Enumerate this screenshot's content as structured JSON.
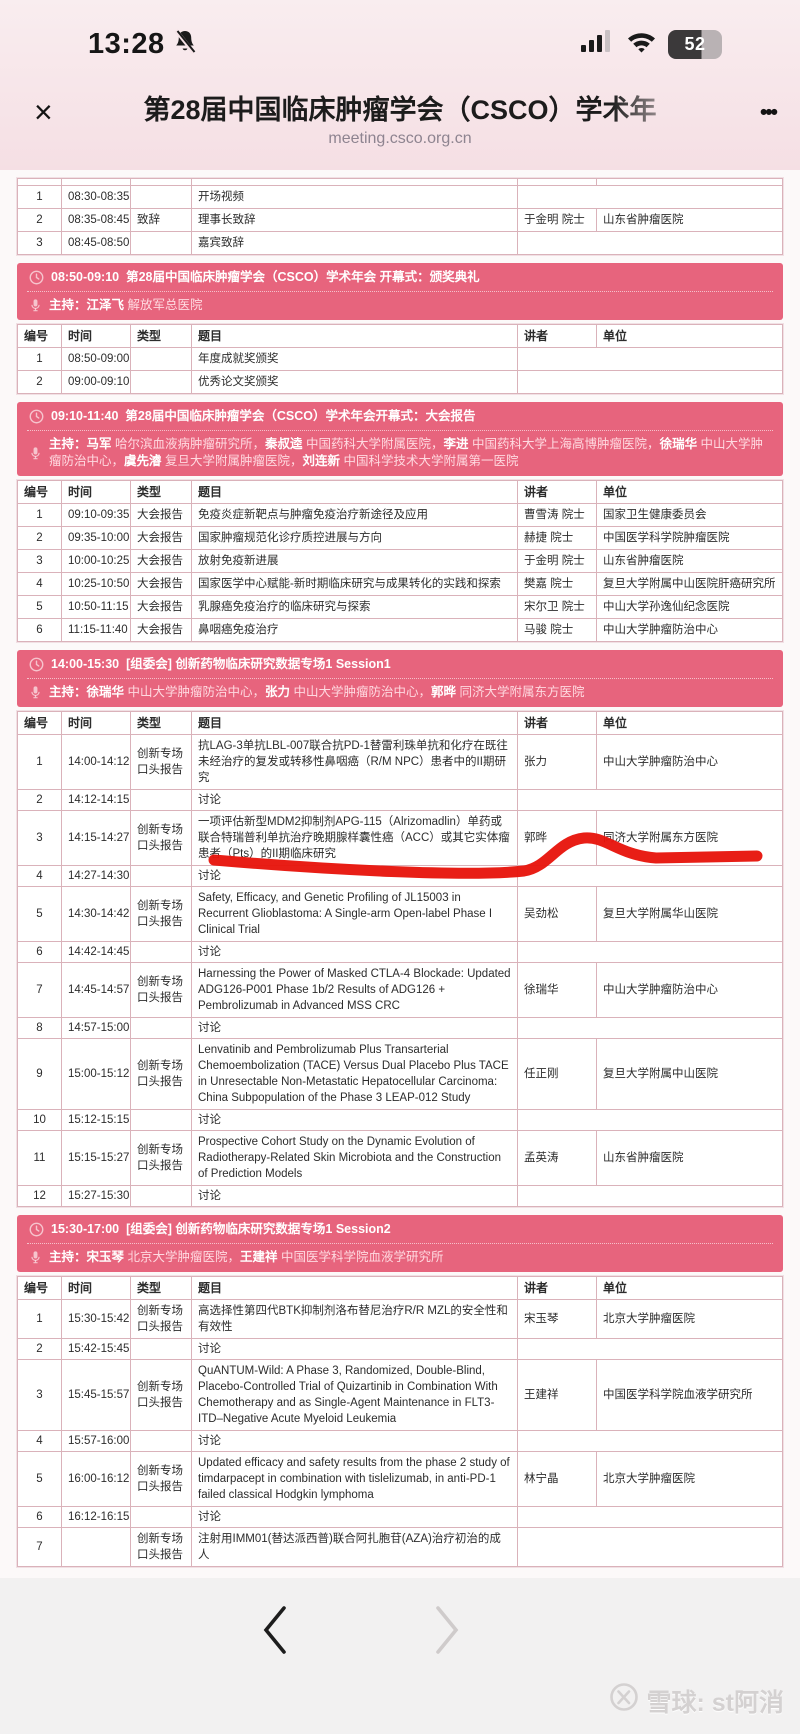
{
  "status_bar": {
    "time": "13:28",
    "battery_percent": "52"
  },
  "browser_bar": {
    "title": "第28届中国临床肿瘤学会（CSCO）学术年",
    "url": "meeting.csco.org.cn",
    "close_glyph": "×",
    "more_glyph": "•••"
  },
  "icons": {
    "close-icon": "×",
    "more-icon": "•••",
    "bell-muted-icon": "muted-bell",
    "signal-icon": "cellular-bars",
    "wifi-icon": "wifi",
    "battery-icon": "battery-52",
    "clock-icon": "clock-outline",
    "mic-icon": "microphone",
    "prev-page-icon": "‹",
    "next-page-icon": "›",
    "xueqiu-logo-icon": "snowball-circle"
  },
  "labels": {
    "host_prefix": "主持："
  },
  "table_columns": [
    "编号",
    "时间",
    "类型",
    "题目",
    "讲者",
    "单位"
  ],
  "sections": [
    {
      "type": "table",
      "clipped_top": true,
      "header": false,
      "rows": [
        [
          "1",
          "08:30-08:35",
          "",
          "开场视频",
          "",
          ""
        ],
        [
          "2",
          "08:35-08:45",
          "致辞",
          "理事长致辞",
          "于金明 院士",
          "山东省肿瘤医院"
        ],
        [
          "3",
          "08:45-08:50",
          "",
          "嘉宾致辞",
          "",
          ""
        ]
      ]
    },
    {
      "type": "session",
      "time": "08:50-09:10",
      "title": "第28届中国临床肿瘤学会（CSCO）学术年会 开幕式：颁奖典礼",
      "hosts": [
        {
          "name": "江泽飞",
          "org": "解放军总医院"
        }
      ]
    },
    {
      "type": "table",
      "header": true,
      "rows": [
        [
          "1",
          "08:50-09:00",
          "",
          "年度成就奖颁奖",
          "",
          ""
        ],
        [
          "2",
          "09:00-09:10",
          "",
          "优秀论文奖颁奖",
          "",
          ""
        ]
      ]
    },
    {
      "type": "session",
      "time": "09:10-11:40",
      "title": "第28届中国临床肿瘤学会（CSCO）学术年会开幕式：大会报告",
      "hosts": [
        {
          "name": "马军",
          "org": "哈尔滨血液病肿瘤研究所"
        },
        {
          "name": "秦叔逵",
          "org": "中国药科大学附属医院"
        },
        {
          "name": "李进",
          "org": "中国药科大学上海高博肿瘤医院"
        },
        {
          "name": "徐瑞华",
          "org": "中山大学肿瘤防治中心"
        },
        {
          "name": "虞先濬",
          "org": "复旦大学附属肿瘤医院"
        },
        {
          "name": "刘连新",
          "org": "中国科学技术大学附属第一医院"
        }
      ]
    },
    {
      "type": "table",
      "header": true,
      "rows": [
        [
          "1",
          "09:10-09:35",
          "大会报告",
          "免疫炎症新靶点与肿瘤免疫治疗新途径及应用",
          "曹雪涛 院士",
          "国家卫生健康委员会"
        ],
        [
          "2",
          "09:35-10:00",
          "大会报告",
          "国家肿瘤规范化诊疗质控进展与方向",
          "赫捷 院士",
          "中国医学科学院肿瘤医院"
        ],
        [
          "3",
          "10:00-10:25",
          "大会报告",
          "放射免疫新进展",
          "于金明 院士",
          "山东省肿瘤医院"
        ],
        [
          "4",
          "10:25-10:50",
          "大会报告",
          "国家医学中心赋能-新时期临床研究与成果转化的实践和探索",
          "樊嘉 院士",
          "复旦大学附属中山医院肝癌研究所"
        ],
        [
          "5",
          "10:50-11:15",
          "大会报告",
          "乳腺癌免疫治疗的临床研究与探索",
          "宋尔卫 院士",
          "中山大学孙逸仙纪念医院"
        ],
        [
          "6",
          "11:15-11:40",
          "大会报告",
          "鼻咽癌免疫治疗",
          "马骏 院士",
          "中山大学肿瘤防治中心"
        ]
      ]
    },
    {
      "type": "session",
      "time": "14:00-15:30",
      "title": "[组委会] 创新药物临床研究数据专场1 Session1",
      "hosts": [
        {
          "name": "徐瑞华",
          "org": "中山大学肿瘤防治中心"
        },
        {
          "name": "张力",
          "org": "中山大学肿瘤防治中心"
        },
        {
          "name": "郭晔",
          "org": "同济大学附属东方医院"
        }
      ]
    },
    {
      "type": "table",
      "header": true,
      "rows": [
        [
          "1",
          "14:00-14:12",
          "创新专场口头报告",
          "抗LAG-3单抗LBL-007联合抗PD-1替雷利珠单抗和化疗在既往未经治疗的复发或转移性鼻咽癌（R/M NPC）患者中的II期研究",
          "张力",
          "中山大学肿瘤防治中心"
        ],
        [
          "2",
          "14:12-14:15",
          "",
          "讨论",
          "",
          ""
        ],
        [
          "3",
          "14:15-14:27",
          "创新专场口头报告",
          "一项评估新型MDM2抑制剂APG-115（Alrizomadlin）单药或联合特瑞普利单抗治疗晚期腺样囊性癌（ACC）或其它实体瘤患者（Pts）的II期临床研究",
          "郭晔",
          "同济大学附属东方医院"
        ],
        [
          "4",
          "14:27-14:30",
          "",
          "讨论",
          "",
          ""
        ],
        [
          "5",
          "14:30-14:42",
          "创新专场口头报告",
          "Safety, Efficacy, and Genetic Profiling of JL15003 in Recurrent Glioblastoma: A Single-arm Open-label Phase I Clinical Trial",
          "吴劲松",
          "复旦大学附属华山医院"
        ],
        [
          "6",
          "14:42-14:45",
          "",
          "讨论",
          "",
          ""
        ],
        [
          "7",
          "14:45-14:57",
          "创新专场口头报告",
          "Harnessing the Power of Masked CTLA-4 Blockade: Updated ADG126-P001 Phase 1b/2 Results of ADG126 + Pembrolizumab in Advanced MSS CRC",
          "徐瑞华",
          "中山大学肿瘤防治中心"
        ],
        [
          "8",
          "14:57-15:00",
          "",
          "讨论",
          "",
          ""
        ],
        [
          "9",
          "15:00-15:12",
          "创新专场口头报告",
          "Lenvatinib and Pembrolizumab Plus Transarterial Chemoembolization (TACE) Versus Dual Placebo Plus TACE in Unresectable Non-Metastatic Hepatocellular Carcinoma: China Subpopulation of the Phase 3 LEAP-012 Study",
          "任正刚",
          "复旦大学附属中山医院"
        ],
        [
          "10",
          "15:12-15:15",
          "",
          "讨论",
          "",
          ""
        ],
        [
          "11",
          "15:15-15:27",
          "创新专场口头报告",
          "Prospective Cohort Study on the Dynamic Evolution of Radiotherapy-Related Skin Microbiota and the Construction of Prediction Models",
          "孟英涛",
          "山东省肿瘤医院"
        ],
        [
          "12",
          "15:27-15:30",
          "",
          "讨论",
          "",
          ""
        ]
      ]
    },
    {
      "type": "session",
      "time": "15:30-17:00",
      "title": "[组委会] 创新药物临床研究数据专场1 Session2",
      "hosts": [
        {
          "name": "宋玉琴",
          "org": "北京大学肿瘤医院"
        },
        {
          "name": "王建祥",
          "org": "中国医学科学院血液学研究所"
        }
      ]
    },
    {
      "type": "table",
      "header": true,
      "rows": [
        [
          "1",
          "15:30-15:42",
          "创新专场口头报告",
          "高选择性第四代BTK抑制剂洛布替尼治疗R/R MZL的安全性和有效性",
          "宋玉琴",
          "北京大学肿瘤医院"
        ],
        [
          "2",
          "15:42-15:45",
          "",
          "讨论",
          "",
          ""
        ],
        [
          "3",
          "15:45-15:57",
          "创新专场口头报告",
          "QuANTUM-Wild: A Phase 3, Randomized, Double-Blind, Placebo-Controlled Trial of Quizartinib in Combination With Chemotherapy and as Single-Agent Maintenance in FLT3-ITD–Negative Acute Myeloid Leukemia",
          "王建祥",
          "中国医学科学院血液学研究所"
        ],
        [
          "4",
          "15:57-16:00",
          "",
          "讨论",
          "",
          ""
        ],
        [
          "5",
          "16:00-16:12",
          "创新专场口头报告",
          "Updated efficacy and safety results from the phase 2 study of timdarpacept in combination with tislelizumab, in anti-PD-1 failed classical Hodgkin lymphoma",
          "林宁晶",
          "北京大学肿瘤医院"
        ],
        [
          "6",
          "16:12-16:15",
          "",
          "讨论",
          "",
          ""
        ],
        [
          "7",
          "",
          "创新专场口头报告",
          "注射用IMM01(替达派西普)联合阿扎胞苷(AZA)治疗初治的成人",
          "",
          ""
        ]
      ]
    }
  ],
  "watermark": {
    "text": "雪球: st阿消"
  },
  "colors": {
    "session_header_bg": "#e7647d",
    "table_border": "#b98e98",
    "table_border_inner": "#dab2ba",
    "annotation_red": "#e7150c",
    "chrome_bg": "#f6e3e7",
    "footer_bg": "#f2f1f1"
  }
}
